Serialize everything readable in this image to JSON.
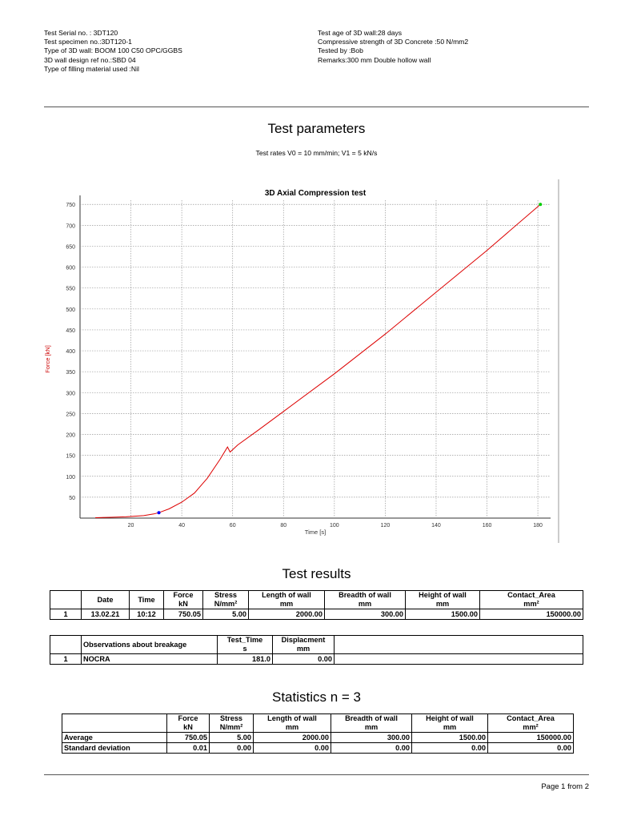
{
  "header": {
    "left": [
      "Test Serial no. : 3DT120",
      "Test specimen no.:3DT120-1",
      "Type of 3D wall: BOOM 100 C50 OPC/GGBS",
      "3D wall design ref no.:SBD 04",
      "Type of filling material used :Nil"
    ],
    "right": [
      "Test age of 3D wall:28 days",
      "Compressive strength of 3D Concrete :50 N/mm2",
      "Tested by :Bob",
      "Remarks:300 mm Double hollow wall"
    ]
  },
  "params": {
    "title": "Test parameters",
    "rates": "Test rates  V0 = 10 mm/min; V1 = 5 kN/s"
  },
  "chart_data": {
    "type": "line",
    "title": "3D Axial Compression test",
    "xlabel": "Time [s]",
    "ylabel": "Force [kN]",
    "xlim": [
      0,
      185
    ],
    "ylim": [
      0,
      760
    ],
    "x_ticks": [
      20,
      40,
      60,
      80,
      100,
      120,
      140,
      160,
      180
    ],
    "y_ticks": [
      50,
      100,
      150,
      200,
      250,
      300,
      350,
      400,
      450,
      500,
      550,
      600,
      650,
      700,
      750
    ],
    "grid": true,
    "series": [
      {
        "color": "#dd0000",
        "x": [
          6,
          12,
          18,
          25,
          29,
          31,
          35,
          40,
          45,
          50,
          55,
          58,
          59,
          62,
          70,
          80,
          100,
          120,
          140,
          160,
          181
        ],
        "y": [
          1,
          2,
          3,
          6,
          10,
          13,
          22,
          38,
          60,
          95,
          140,
          170,
          158,
          175,
          210,
          255,
          345,
          440,
          540,
          640,
          750
        ]
      }
    ],
    "markers": [
      {
        "x": 31,
        "y": 13,
        "color": "#0000ff"
      },
      {
        "x": 181,
        "y": 750,
        "color": "#00cc00"
      }
    ],
    "colors": {
      "line": "#dd0000",
      "axis_label": "#cc0000",
      "grid": "#999999"
    }
  },
  "results": {
    "title": "Test results",
    "headers": [
      [
        "",
        ""
      ],
      [
        "Date",
        ""
      ],
      [
        "Time",
        ""
      ],
      [
        "Force",
        "kN"
      ],
      [
        "Stress",
        "N/mm²"
      ],
      [
        "Length of wall",
        "mm"
      ],
      [
        "Breadth of wall",
        "mm"
      ],
      [
        "Height of wall",
        "mm"
      ],
      [
        "Contact_Area",
        "mm²"
      ]
    ],
    "row": [
      "1",
      "13.02.21",
      "10:12",
      "750.05",
      "5.00",
      "2000.00",
      "300.00",
      "1500.00",
      "150000.00"
    ]
  },
  "observations": {
    "headers": [
      [
        "",
        ""
      ],
      [
        "Observations about breakage",
        ""
      ],
      [
        "Test_Time",
        "s"
      ],
      [
        "Displacment",
        "mm"
      ],
      [
        "",
        ""
      ]
    ],
    "row": [
      "1",
      "NOCRA",
      "181.0",
      "0.00",
      ""
    ]
  },
  "stats": {
    "title": "Statistics n = 3",
    "headers": [
      [
        "",
        ""
      ],
      [
        "Force",
        "kN"
      ],
      [
        "Stress",
        "N/mm²"
      ],
      [
        "Length of wall",
        "mm"
      ],
      [
        "Breadth of wall",
        "mm"
      ],
      [
        "Height of wall",
        "mm"
      ],
      [
        "Contact_Area",
        "mm²"
      ]
    ],
    "rows": [
      [
        "Average",
        "750.05",
        "5.00",
        "2000.00",
        "300.00",
        "1500.00",
        "150000.00"
      ],
      [
        "Standard deviation",
        "0.01",
        "0.00",
        "0.00",
        "0.00",
        "0.00",
        "0.00"
      ]
    ]
  },
  "footer": {
    "page": "Page 1 from 2"
  }
}
